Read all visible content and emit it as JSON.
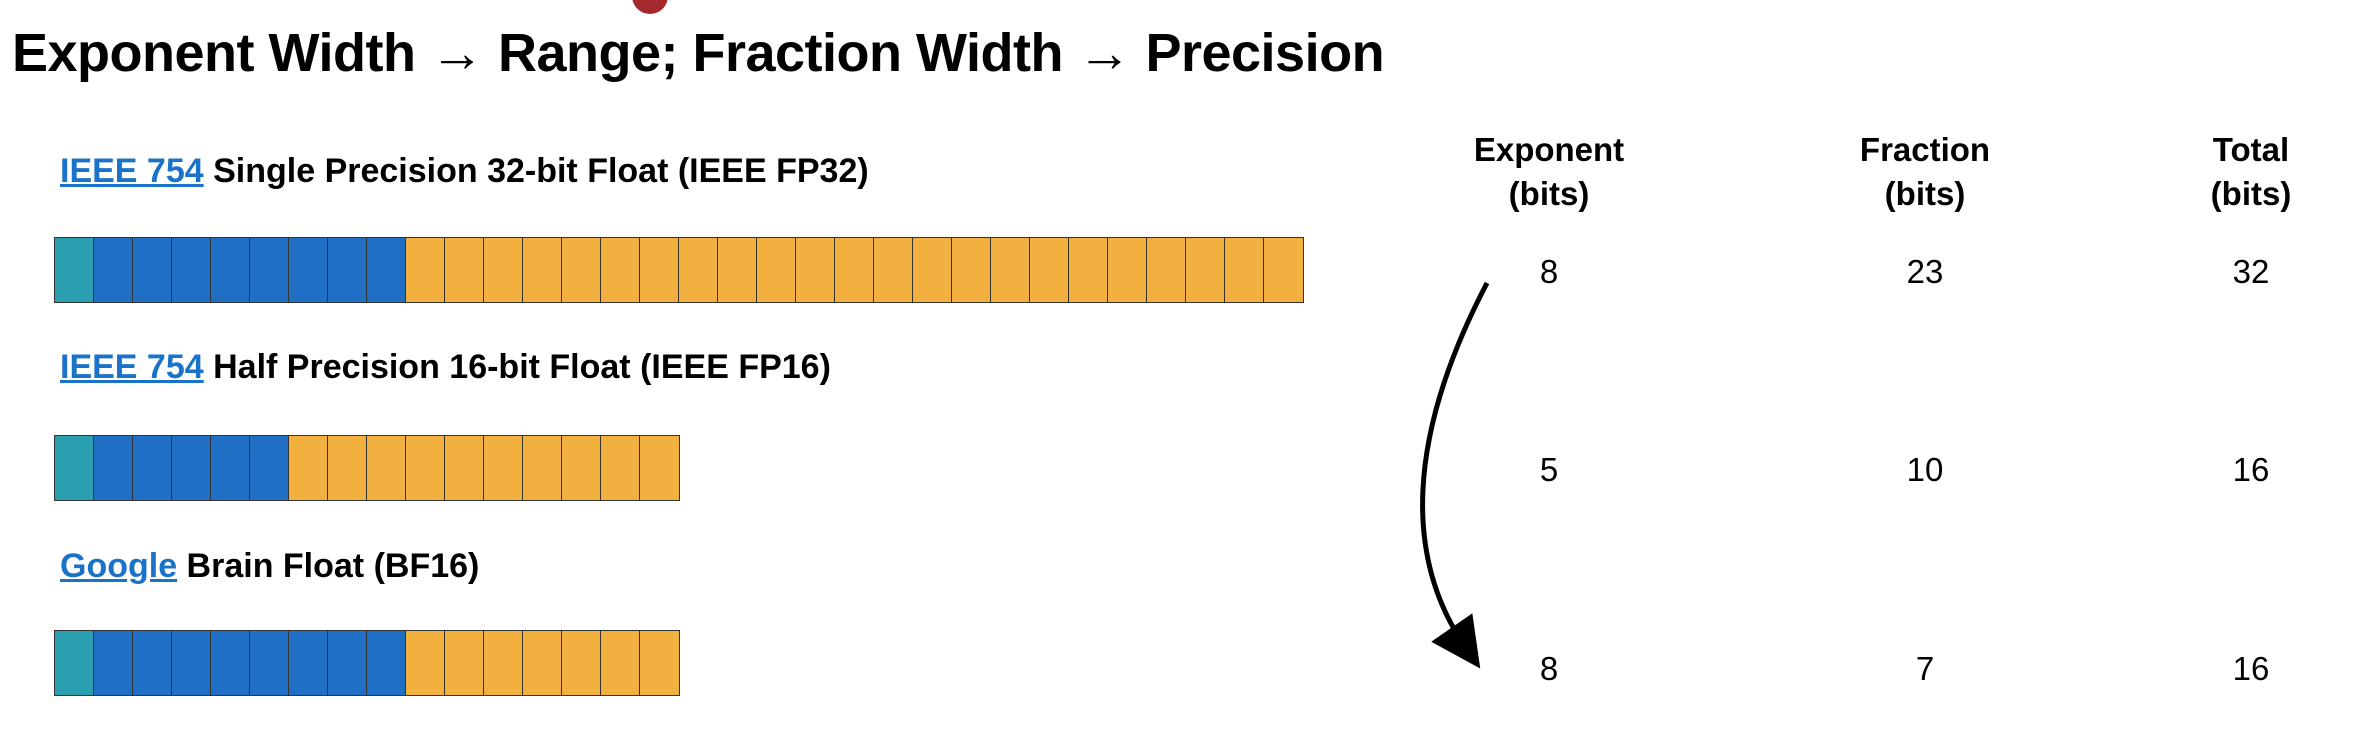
{
  "title": "Exponent Width → Range; Fraction Width → Precision",
  "colors": {
    "sign": "#2a9fb0",
    "exponent": "#1f6fc5",
    "fraction": "#f2b13f",
    "link": "#1a73c8",
    "accent_dot": "#a5282c"
  },
  "formats": [
    {
      "link": "IEEE 754",
      "label": " Single Precision 32-bit Float (IEEE FP32)",
      "sign_bits": 1,
      "exponent": "8",
      "fraction": "23",
      "total": "32"
    },
    {
      "link": "IEEE 754",
      "label": " Half Precision 16-bit Float (IEEE FP16)",
      "sign_bits": 1,
      "exponent": "5",
      "fraction": "10",
      "total": "16"
    },
    {
      "link": "Google",
      "label": " Brain Float (BF16)",
      "sign_bits": 1,
      "exponent": "8",
      "fraction": "7",
      "total": "16"
    }
  ],
  "table": {
    "headers": [
      {
        "line1": "Exponent",
        "line2": "(bits)"
      },
      {
        "line1": "Fraction",
        "line2": "(bits)"
      },
      {
        "line1": "Total",
        "line2": "(bits)"
      }
    ]
  }
}
